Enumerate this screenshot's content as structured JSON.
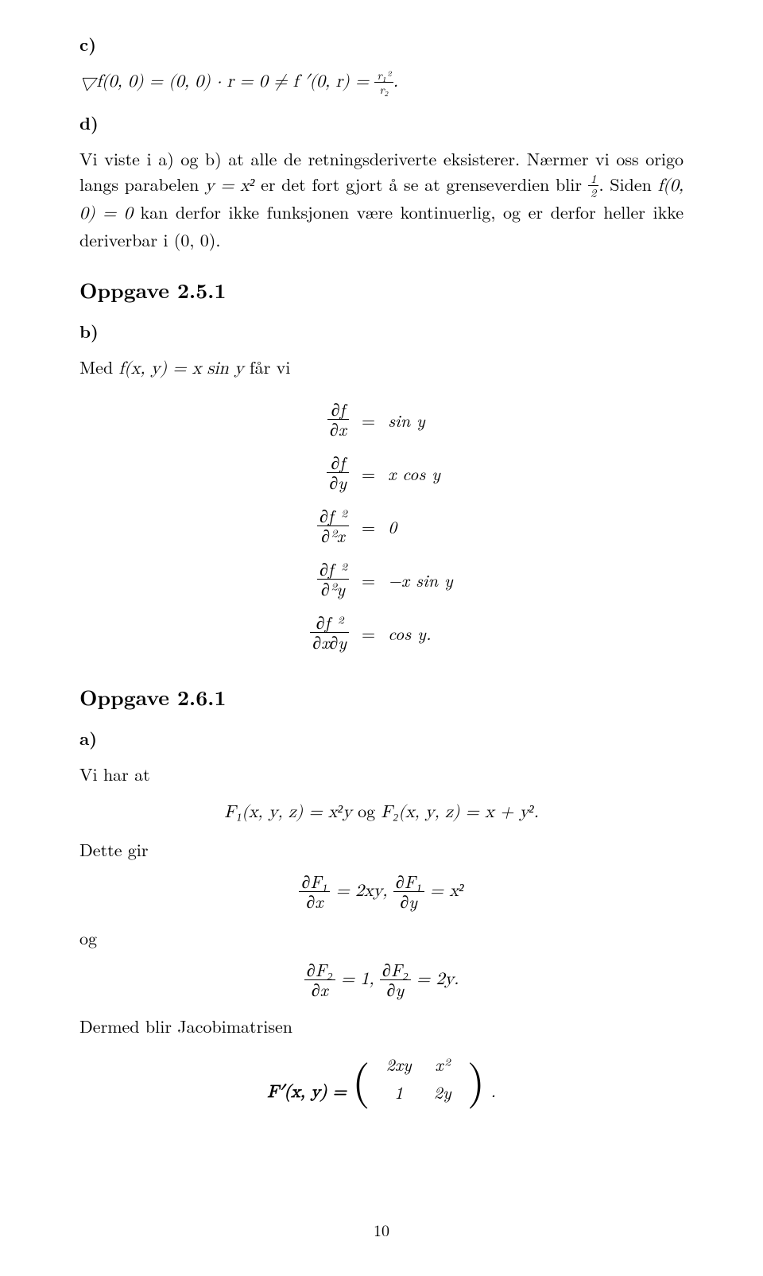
{
  "section_c": {
    "label": "c)",
    "eq_lhs": "▽f(0, 0) = (0, 0) · r = 0 ≠ f ′(0, r) =",
    "eq_frac_num": "r₁²",
    "eq_frac_den": "r₂",
    "eq_period": "."
  },
  "section_d": {
    "label": "d)",
    "text_before": "Vi viste i a) og b) at alle de retningsderiverte eksisterer. Nærmer vi oss origo langs parabelen ",
    "eq1": "y = x²",
    "text_mid1": " er det fort gjort å se at grenseverdien blir ",
    "frac_num": "1",
    "frac_den": "2",
    "text_mid2": ". Siden ",
    "eq2": "f(0, 0) = 0",
    "text_after": " kan derfor ikke funksjonen være kontinuerlig, og er derfor heller ikke deriverbar i (0, 0)."
  },
  "oppgave251": {
    "title": "Oppgave 2.5.1",
    "part_b": "b)",
    "intro_before": "Med ",
    "intro_fn": "f(x, y) = x sin y",
    "intro_after": " får vi",
    "rows": [
      {
        "lhs_num": "∂f",
        "lhs_den": "∂x",
        "rhs": "sin y"
      },
      {
        "lhs_num": "∂f",
        "lhs_den": "∂y",
        "rhs": "x cos y"
      },
      {
        "lhs_num": "∂f ²",
        "lhs_den": "∂²x",
        "rhs": "0"
      },
      {
        "lhs_num": "∂f ²",
        "lhs_den": "∂²y",
        "rhs": "−x sin y"
      },
      {
        "lhs_num": "∂f ²",
        "lhs_den": "∂x∂y",
        "rhs": "cos y."
      }
    ]
  },
  "oppgave261": {
    "title": "Oppgave 2.6.1",
    "part_a": "a)",
    "line1": "Vi har at",
    "eq1_lhs": "F₁(x, y, z) = x²y",
    "eq1_mid": " og ",
    "eq1_rhs": "F₂(x, y, z) = x + y².",
    "line2": "Dette gir",
    "eq2_a_num": "∂F₁",
    "eq2_a_den": "∂x",
    "eq2_a_rhs": " = 2xy,  ",
    "eq2_b_num": "∂F₁",
    "eq2_b_den": "∂y",
    "eq2_b_rhs": " = x²",
    "line3": "og",
    "eq3_a_num": "∂F₂",
    "eq3_a_den": "∂x",
    "eq3_a_rhs": " = 1,  ",
    "eq3_b_num": "∂F₂",
    "eq3_b_den": "∂y",
    "eq3_b_rhs": " = 2y.",
    "line4": "Dermed blir Jacobimatrisen",
    "matrix_prefix": "F′(x, y) = ",
    "matrix": {
      "r1c1": "2xy",
      "r1c2": "x²",
      "r2c1": "1",
      "r2c2": "2y"
    },
    "matrix_suffix": "."
  },
  "pagenum": "10"
}
